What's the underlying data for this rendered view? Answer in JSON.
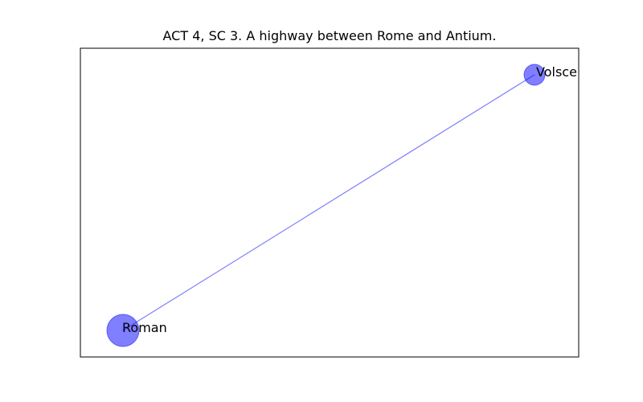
{
  "title": "ACT 4, SC 3. A highway between Rome and Antium.",
  "colors": {
    "node_fill": "#0000ff",
    "edge": "#0000ff",
    "frame": "#000000"
  },
  "nodes": [
    {
      "id": "Volsce",
      "label": "Volsce",
      "size": "small"
    },
    {
      "id": "Roman",
      "label": "Roman",
      "size": "large"
    }
  ],
  "edges": [
    {
      "source": "Roman",
      "target": "Volsce"
    }
  ]
}
